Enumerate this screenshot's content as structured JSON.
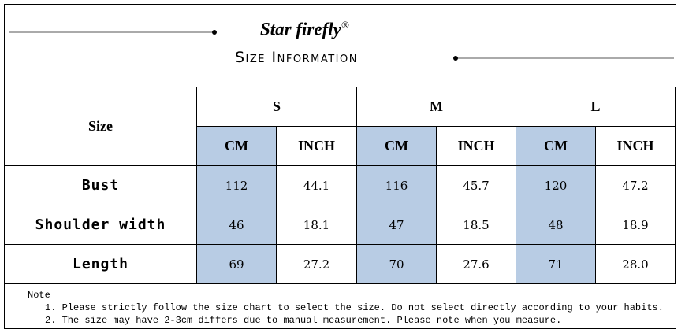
{
  "header": {
    "brand": "Star firefly",
    "mark": "®",
    "title": "Size Information"
  },
  "table": {
    "size_label": "Size",
    "sizes": [
      "S",
      "M",
      "L"
    ],
    "units": [
      "CM",
      "INCH"
    ],
    "rows": [
      {
        "label": "Bust",
        "values": [
          "112",
          "44.1",
          "116",
          "45.7",
          "120",
          "47.2"
        ]
      },
      {
        "label": "Shoulder width",
        "values": [
          "46",
          "18.1",
          "47",
          "18.5",
          "48",
          "18.9"
        ]
      },
      {
        "label": "Length",
        "values": [
          "69",
          "27.2",
          "70",
          "27.6",
          "71",
          "28.0"
        ]
      }
    ]
  },
  "note": {
    "title": "Note",
    "items": [
      "1. Please strictly follow the size chart to select the size. Do not select directly according to your habits.",
      "2. The size may have 2-3cm differs due to manual measurement. Please note when you measure."
    ]
  }
}
